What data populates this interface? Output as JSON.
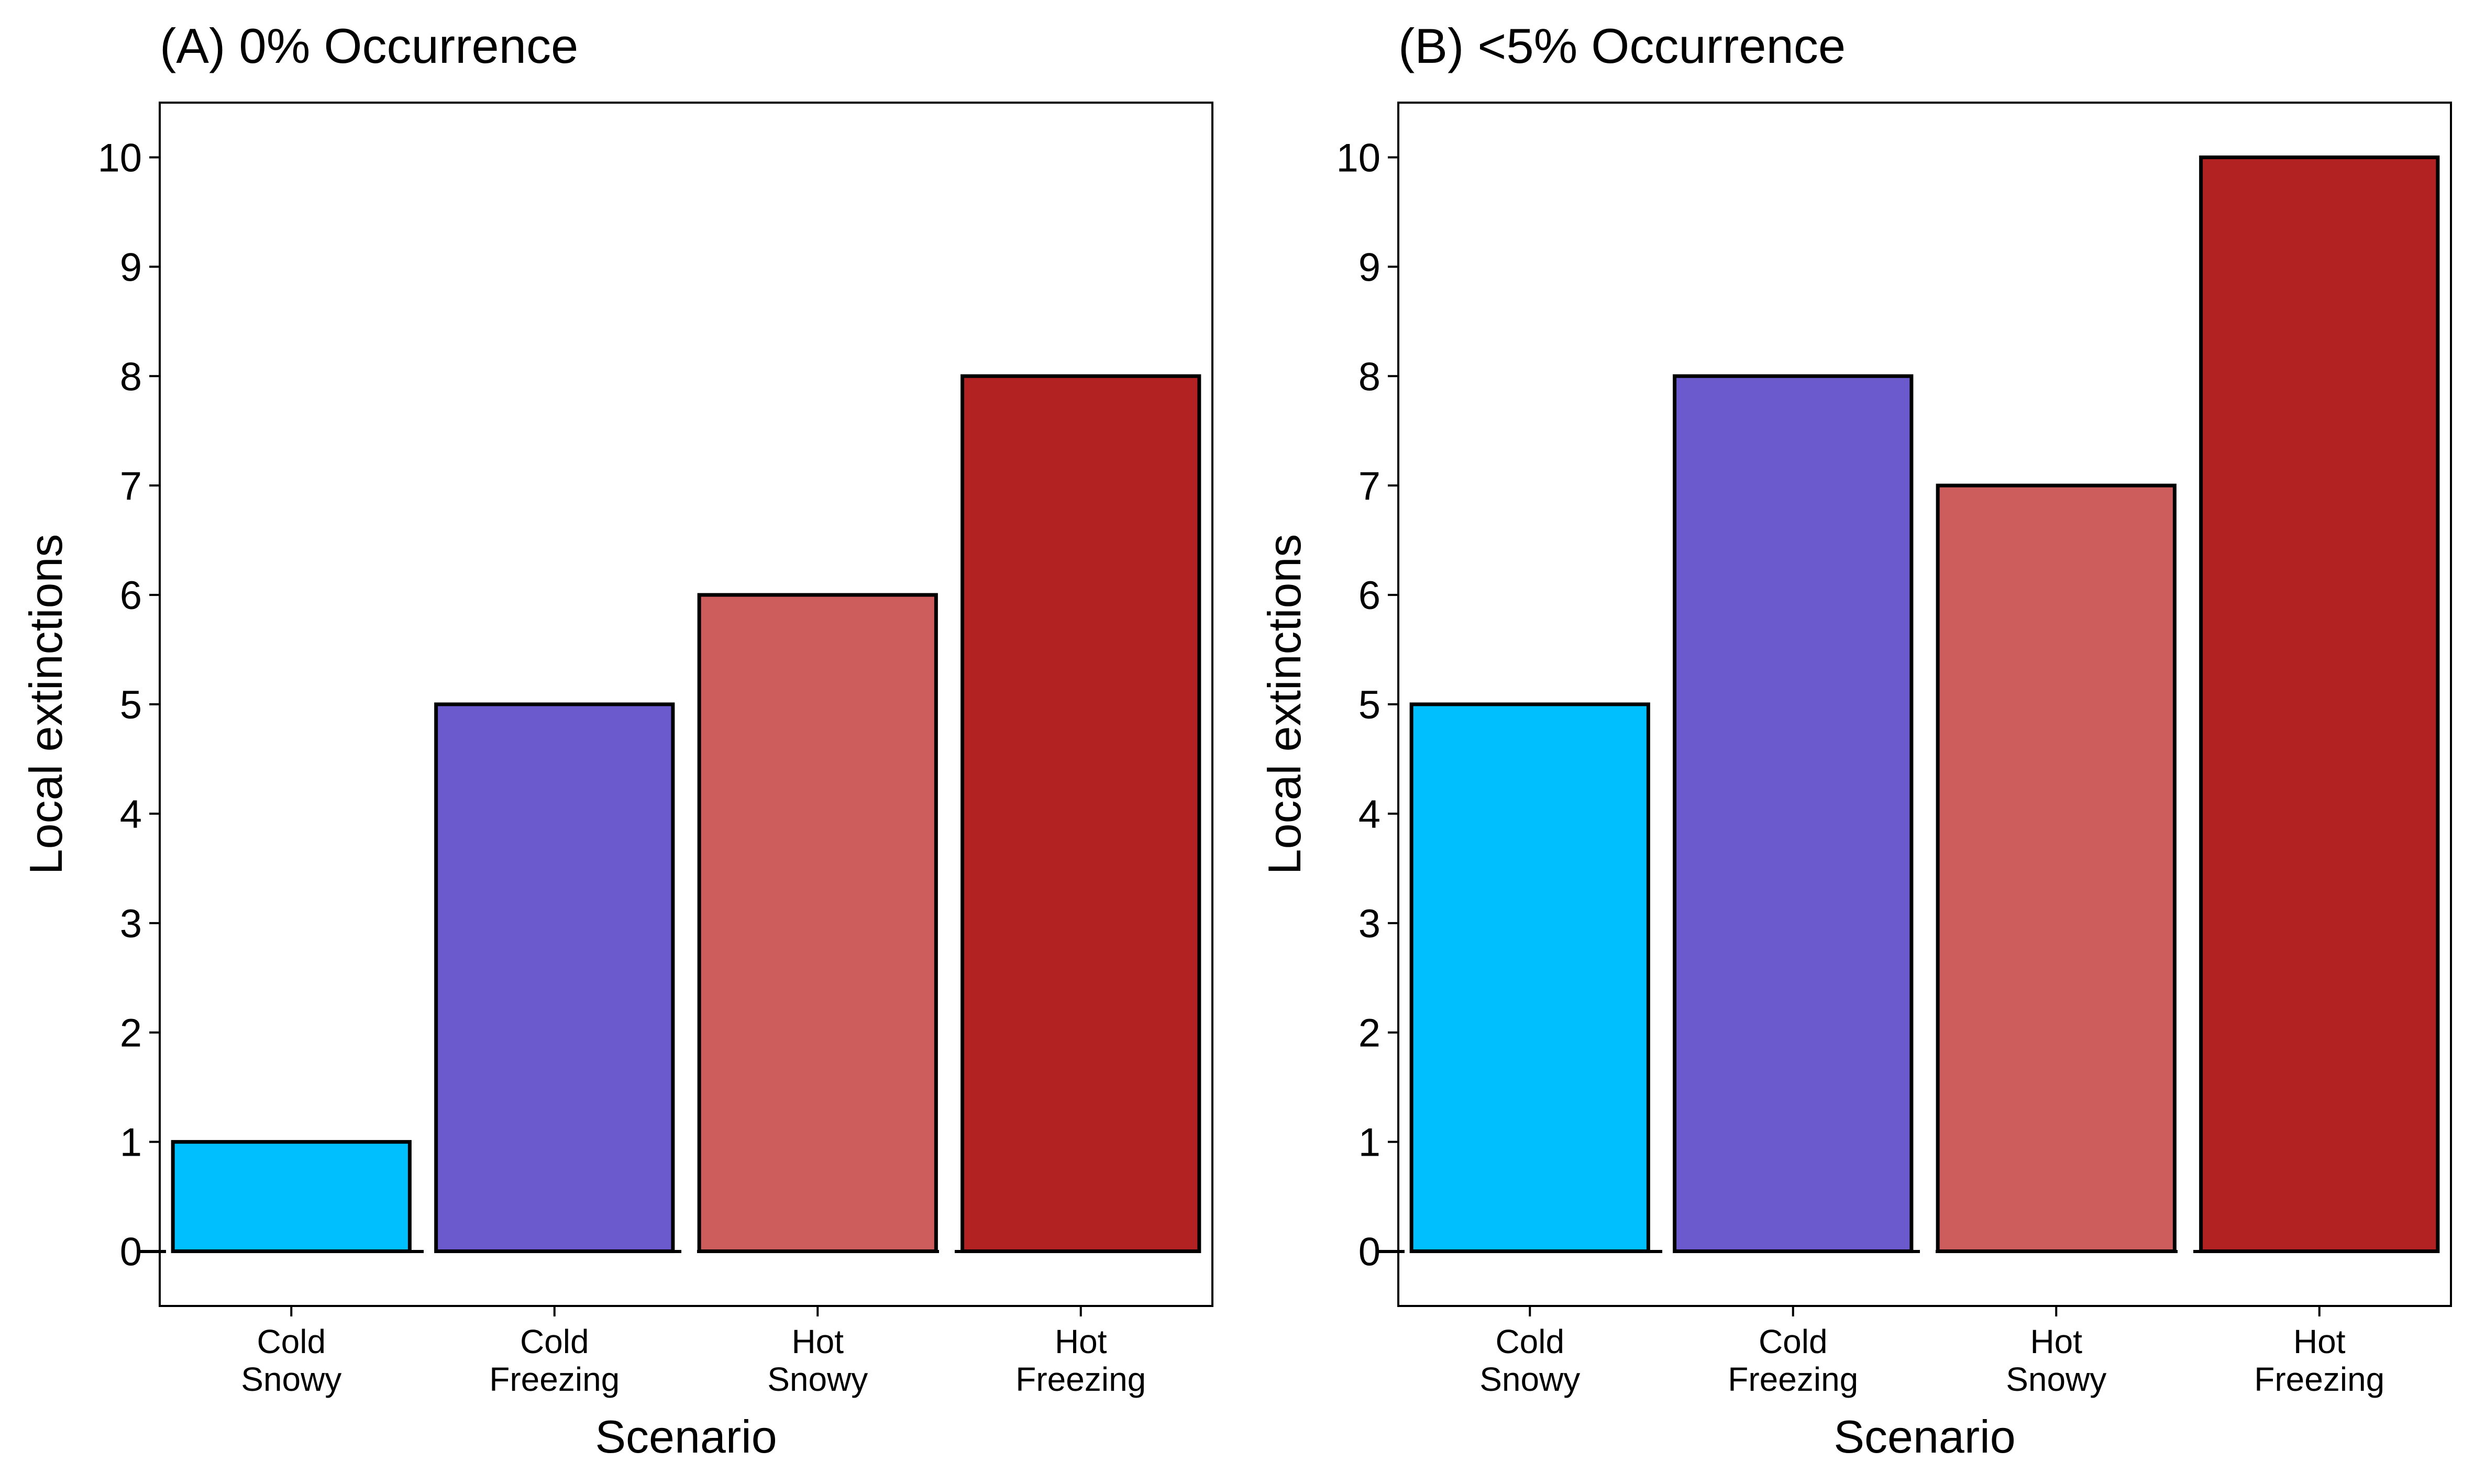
{
  "chart_data": [
    {
      "type": "bar",
      "title": "(A) 0% Occurrence",
      "xlabel": "Scenario",
      "ylabel": "Local extinctions",
      "ylim": [
        -0.5,
        10.5
      ],
      "yticks": [
        0,
        1,
        2,
        3,
        4,
        5,
        6,
        7,
        8,
        9,
        10
      ],
      "categories": [
        [
          "Cold",
          "Snowy"
        ],
        [
          "Cold",
          "Freezing"
        ],
        [
          "Hot",
          "Snowy"
        ],
        [
          "Hot",
          "Freezing"
        ]
      ],
      "values": [
        1,
        5,
        6,
        8
      ],
      "colors": [
        "#00BFFF",
        "#6A5ACD",
        "#CD5C5C",
        "#B22222"
      ],
      "grid": false,
      "reference_line": 0
    },
    {
      "type": "bar",
      "title": "(B) <5% Occurrence",
      "xlabel": "Scenario",
      "ylabel": "Local extinctions",
      "ylim": [
        -0.5,
        10.5
      ],
      "yticks": [
        0,
        1,
        2,
        3,
        4,
        5,
        6,
        7,
        8,
        9,
        10
      ],
      "categories": [
        [
          "Cold",
          "Snowy"
        ],
        [
          "Cold",
          "Freezing"
        ],
        [
          "Hot",
          "Snowy"
        ],
        [
          "Hot",
          "Freezing"
        ]
      ],
      "values": [
        5,
        8,
        7,
        10
      ],
      "colors": [
        "#00BFFF",
        "#6A5ACD",
        "#CD5C5C",
        "#B22222"
      ],
      "grid": false,
      "reference_line": 0
    }
  ]
}
